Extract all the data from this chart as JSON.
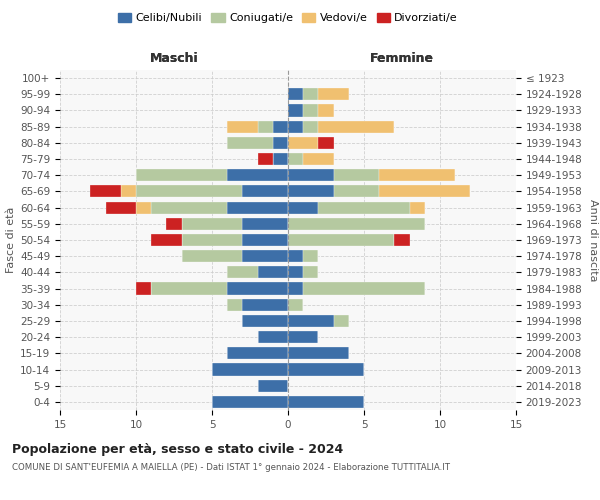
{
  "age_groups": [
    "0-4",
    "5-9",
    "10-14",
    "15-19",
    "20-24",
    "25-29",
    "30-34",
    "35-39",
    "40-44",
    "45-49",
    "50-54",
    "55-59",
    "60-64",
    "65-69",
    "70-74",
    "75-79",
    "80-84",
    "85-89",
    "90-94",
    "95-99",
    "100+"
  ],
  "birth_years": [
    "2019-2023",
    "2014-2018",
    "2009-2013",
    "2004-2008",
    "1999-2003",
    "1994-1998",
    "1989-1993",
    "1984-1988",
    "1979-1983",
    "1974-1978",
    "1969-1973",
    "1964-1968",
    "1959-1963",
    "1954-1958",
    "1949-1953",
    "1944-1948",
    "1939-1943",
    "1934-1938",
    "1929-1933",
    "1924-1928",
    "≤ 1923"
  ],
  "colors": {
    "celibe": "#3d6fa8",
    "coniugato": "#b5c9a0",
    "vedovo": "#f0c070",
    "divorziato": "#cc2222"
  },
  "maschi": {
    "celibe": [
      5,
      2,
      5,
      4,
      2,
      3,
      3,
      4,
      2,
      3,
      3,
      3,
      4,
      3,
      4,
      1,
      1,
      1,
      0,
      0,
      0
    ],
    "coniugato": [
      0,
      0,
      0,
      0,
      0,
      0,
      1,
      5,
      2,
      4,
      4,
      4,
      5,
      7,
      6,
      0,
      3,
      1,
      0,
      0,
      0
    ],
    "vedovo": [
      0,
      0,
      0,
      0,
      0,
      0,
      0,
      0,
      0,
      0,
      0,
      0,
      1,
      1,
      0,
      0,
      0,
      2,
      0,
      0,
      0
    ],
    "divorziato": [
      0,
      0,
      0,
      0,
      0,
      0,
      0,
      1,
      0,
      0,
      2,
      1,
      2,
      2,
      0,
      1,
      0,
      0,
      0,
      0,
      0
    ]
  },
  "femmine": {
    "celibe": [
      5,
      0,
      5,
      4,
      2,
      3,
      0,
      1,
      1,
      1,
      0,
      0,
      2,
      3,
      3,
      0,
      0,
      1,
      1,
      1,
      0
    ],
    "coniugato": [
      0,
      0,
      0,
      0,
      0,
      1,
      1,
      8,
      1,
      1,
      7,
      9,
      6,
      3,
      3,
      1,
      0,
      1,
      1,
      1,
      0
    ],
    "vedovo": [
      0,
      0,
      0,
      0,
      0,
      0,
      0,
      0,
      0,
      0,
      0,
      0,
      1,
      6,
      5,
      2,
      2,
      5,
      1,
      2,
      0
    ],
    "divorziato": [
      0,
      0,
      0,
      0,
      0,
      0,
      0,
      0,
      0,
      0,
      1,
      0,
      0,
      0,
      0,
      0,
      1,
      0,
      0,
      0,
      0
    ]
  },
  "xlim": 15,
  "title": "Popolazione per età, sesso e stato civile - 2024",
  "subtitle": "COMUNE DI SANT'EUFEMIA A MAIELLA (PE) - Dati ISTAT 1° gennaio 2024 - Elaborazione TUTTITALIA.IT",
  "ylabel_left": "Fasce di età",
  "ylabel_right": "Anni di nascita",
  "xlabel_maschi": "Maschi",
  "xlabel_femmine": "Femmine",
  "legend_labels": [
    "Celibi/Nubili",
    "Coniugati/e",
    "Vedovi/e",
    "Divorziati/e"
  ],
  "bg_color": "#ffffff",
  "grid_color": "#cccccc"
}
